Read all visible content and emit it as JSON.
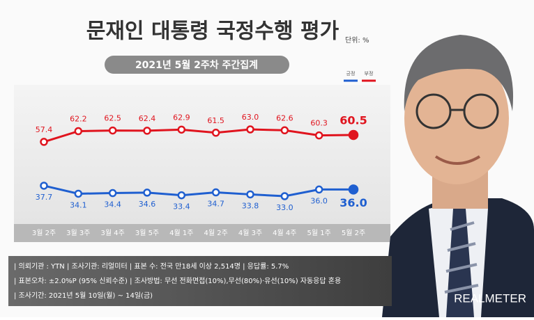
{
  "chart_data": {
    "type": "line",
    "title": "문재인 대통령 국정수행 평가",
    "unit": "단위: %",
    "subtitle": "2021년 5월 2주차 주간집계",
    "categories": [
      "3월 2주",
      "3월 3주",
      "3월 4주",
      "3월 5주",
      "4월 1주",
      "4월 2주",
      "4월 3주",
      "4월 4주",
      "5월 1주",
      "5월 2주"
    ],
    "series": [
      {
        "name": "긍정",
        "color": "#1f5fd0",
        "values": [
          37.7,
          34.1,
          34.4,
          34.6,
          33.4,
          34.7,
          33.8,
          33.0,
          36.0,
          36.0
        ],
        "value_labels": [
          "37.7",
          "34.1",
          "34.4",
          "34.6",
          "33.4",
          "34.7",
          "33.8",
          "33.0",
          "36.0",
          "36.0"
        ]
      },
      {
        "name": "부정",
        "color": "#e0141e",
        "values": [
          57.4,
          62.2,
          62.5,
          62.4,
          62.9,
          61.5,
          63.0,
          62.6,
          60.3,
          60.5
        ],
        "value_labels": [
          "57.4",
          "62.2",
          "62.5",
          "62.4",
          "62.9",
          "61.5",
          "63.0",
          "62.6",
          "60.3",
          "60.5"
        ]
      }
    ],
    "notes": [
      "| 의뢰기관 : YTN  |  조사기관: 리얼미터  |  표본 수: 전국 만18세 이상 2,514명  |  응답률: 5.7%",
      "| 표본오차: ±2.0%P (95% 신뢰수준)  |  조사방법: 무선 전화면접(10%),무선(80%)·유선(10%) 자동응답 혼용",
      "| 조사기간: 2021년 5월 10일(월) ~ 14일(금)"
    ],
    "logo": "REALMETER"
  }
}
